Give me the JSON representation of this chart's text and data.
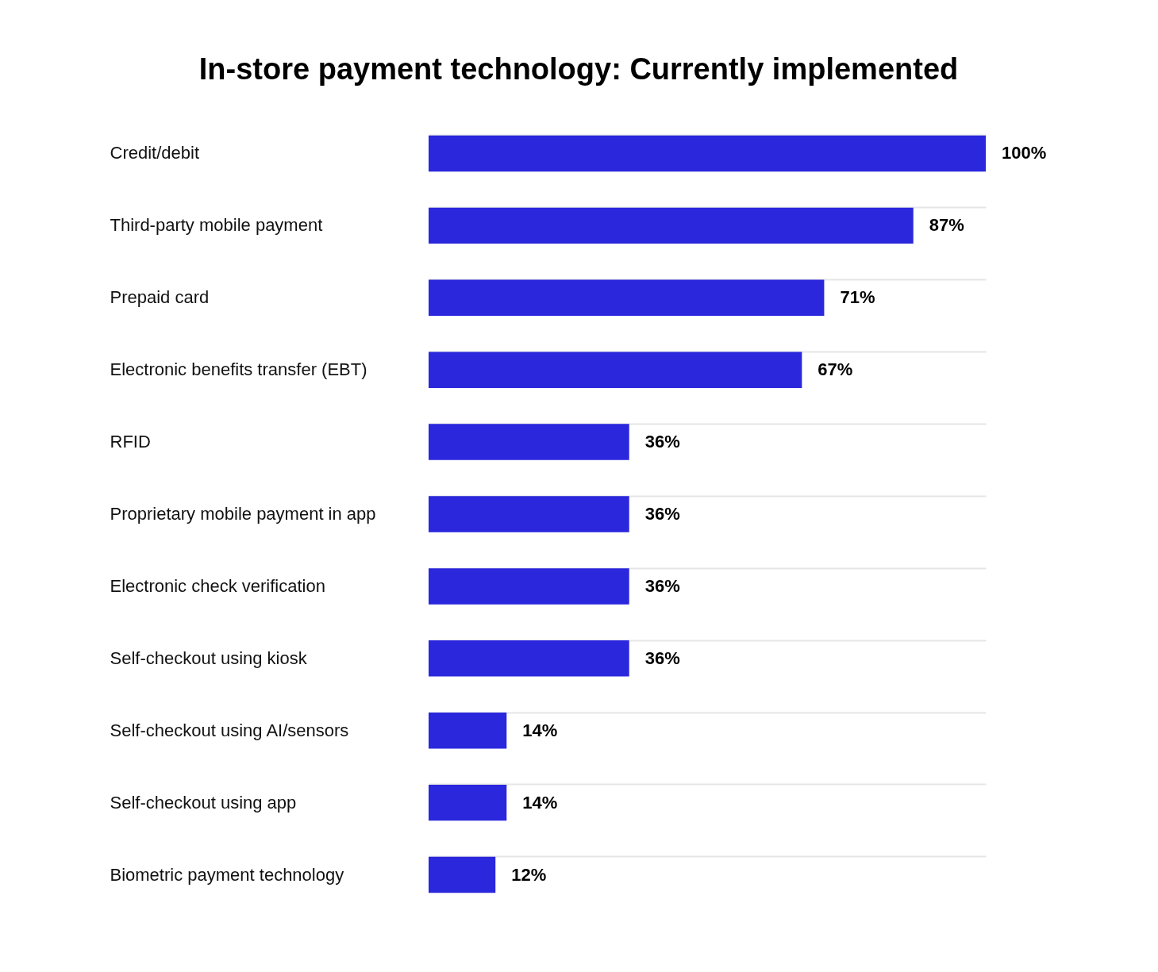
{
  "chart_data": {
    "type": "bar",
    "orientation": "horizontal",
    "title": "In-store payment technology: Currently implemented",
    "categories": [
      "Credit/debit",
      "Third-party mobile payment",
      "Prepaid card",
      "Electronic benefits transfer (EBT)",
      "RFID",
      "Proprietary mobile payment in app",
      "Electronic check verification",
      "Self-checkout using kiosk",
      "Self-checkout using AI/sensors",
      "Self-checkout using app",
      "Biometric payment technology"
    ],
    "values": [
      100,
      87,
      71,
      67,
      36,
      36,
      36,
      36,
      14,
      14,
      12
    ],
    "value_labels": [
      "100%",
      "87%",
      "71%",
      "67%",
      "36%",
      "36%",
      "36%",
      "36%",
      "14%",
      "14%",
      "12%"
    ],
    "color": "#2a27dc",
    "grid": "y"
  }
}
